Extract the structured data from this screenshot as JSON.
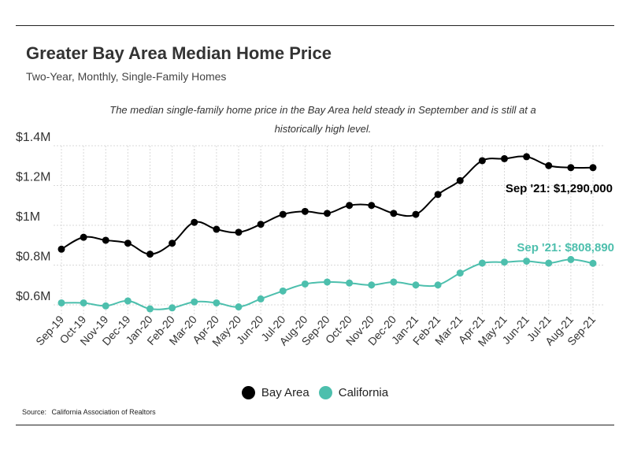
{
  "header": {
    "title": "Greater Bay Area Median Home Price",
    "subtitle": "Two-Year, Monthly, Single-Family Homes",
    "annotation": "The median single-family home price in the Bay Area held steady in September and is still at a historically high level."
  },
  "footer": {
    "source_label": "Source:",
    "source_text": "California Association of Realtors"
  },
  "chart_data": {
    "type": "line",
    "title": "Greater Bay Area Median Home Price",
    "subtitle": "Two-Year, Monthly, Single-Family Homes",
    "xlabel": "",
    "ylabel": "",
    "ylim": [
      500000,
      1400000
    ],
    "yticks": [
      {
        "value": 600000,
        "label": "$0.6M"
      },
      {
        "value": 800000,
        "label": "$0.8M"
      },
      {
        "value": 1000000,
        "label": "$1M"
      },
      {
        "value": 1200000,
        "label": "$1.2M"
      },
      {
        "value": 1400000,
        "label": "$1.4M"
      }
    ],
    "grid": true,
    "legend_position": "bottom-center",
    "categories": [
      "Sep-19",
      "Oct-19",
      "Nov-19",
      "Dec-19",
      "Jan-20",
      "Feb-20",
      "Mar-20",
      "Apr-20",
      "May-20",
      "Jun-20",
      "Jul-20",
      "Aug-20",
      "Sep-20",
      "Oct-20",
      "Nov-20",
      "Dec-20",
      "Jan-21",
      "Feb-21",
      "Mar-21",
      "Apr-21",
      "May-21",
      "Jun-21",
      "Jul-21",
      "Aug-21",
      "Sep-21"
    ],
    "series": [
      {
        "name": "Bay Area",
        "color": "#000000",
        "values": [
          880000,
          940000,
          925000,
          910000,
          855000,
          910000,
          1015000,
          980000,
          965000,
          1005000,
          1055000,
          1070000,
          1060000,
          1100000,
          1100000,
          1060000,
          1055000,
          1155000,
          1225000,
          1325000,
          1335000,
          1345000,
          1300000,
          1290000,
          1290000
        ],
        "end_label": "Sep '21: $1,290,000"
      },
      {
        "name": "California",
        "color": "#4dbfad",
        "values": [
          610000,
          610000,
          595000,
          620000,
          580000,
          585000,
          615000,
          610000,
          590000,
          630000,
          670000,
          705000,
          715000,
          710000,
          700000,
          715000,
          700000,
          700000,
          760000,
          810000,
          815000,
          820000,
          810000,
          828000,
          808890
        ],
        "end_label": "Sep '21: $808,890"
      }
    ]
  }
}
